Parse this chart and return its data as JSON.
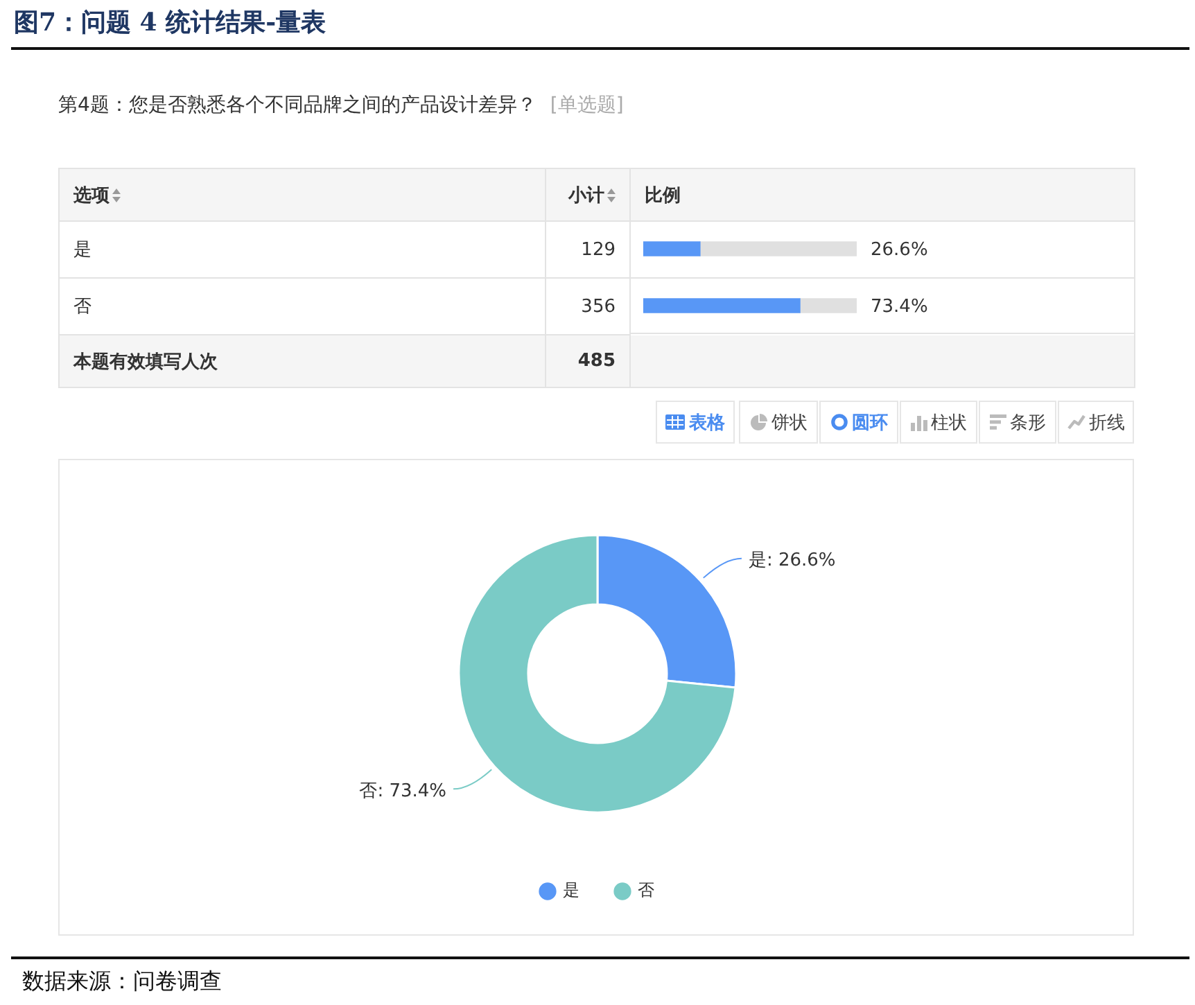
{
  "chart_data": [
    {
      "type": "bar",
      "orientation": "horizontal",
      "stacked": true,
      "title": "图7：问题 4 统计结果-量表",
      "subtitle": "第4题：您是否熟悉各个不同品牌之间的产品设计差异？",
      "annotations": [
        "[单选题]",
        "选项",
        "小计",
        "比例",
        "129",
        "356",
        "本题有效填写人次",
        "485"
      ],
      "categories": [
        "是",
        "否"
      ],
      "series": [
        {
          "color": "#5897f6",
          "values": [
            26.6,
            73.4
          ],
          "value_labels": [
            "26.6%",
            "73.4%"
          ]
        },
        {
          "color": "#e0e0e0",
          "values": [
            73.4,
            26.6
          ]
        }
      ],
      "xlim": [
        0,
        100
      ],
      "tick_labels": "y",
      "grid": "y"
    },
    {
      "type": "donut",
      "annotations": [
        "表格",
        "饼状",
        "圆环",
        "柱状",
        "条形",
        "折线",
        "数据来源：问卷调查"
      ],
      "categories": [
        "是",
        "否"
      ],
      "values": [
        26.6,
        73.4
      ],
      "value_labels": [
        "是: 26.6%",
        "否: 73.4%"
      ],
      "colors": [
        "#5897f6",
        "#7acbc6"
      ],
      "legend": "bottom"
    }
  ]
}
